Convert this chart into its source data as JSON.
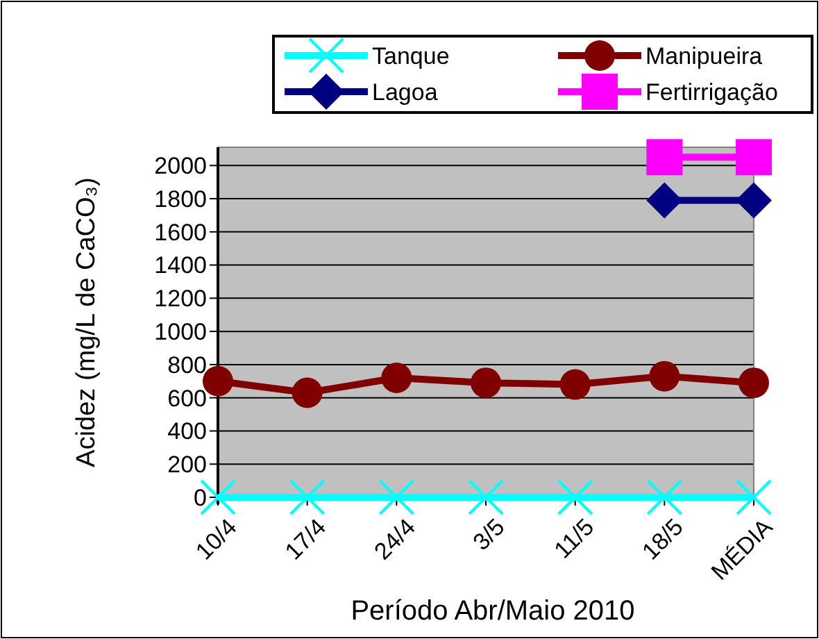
{
  "chart_data": {
    "type": "line",
    "xlabel": "Período Abr/Maio 2010",
    "ylabel": "Acidez (mg/L de CaCO₃)",
    "categories": [
      "10/4",
      "17/4",
      "24/4",
      "3/5",
      "11/5",
      "18/5",
      "MÉDIA"
    ],
    "series": [
      {
        "name": "Tanque",
        "color": "#00ffff",
        "marker": "cross",
        "values": [
          0,
          0,
          0,
          0,
          0,
          0,
          0
        ]
      },
      {
        "name": "Manipueira",
        "color": "#800000",
        "marker": "circle",
        "values": [
          700,
          630,
          720,
          690,
          680,
          730,
          690
        ]
      },
      {
        "name": "Lagoa",
        "color": "#000080",
        "marker": "diamond",
        "values": [
          null,
          null,
          null,
          null,
          null,
          1790,
          1790
        ]
      },
      {
        "name": "Fertirrigação",
        "color": "#ff00ff",
        "marker": "square",
        "values": [
          null,
          null,
          null,
          null,
          null,
          2050,
          2050
        ]
      }
    ],
    "ylim": [
      0,
      2110
    ],
    "yticks": [
      0,
      200,
      400,
      600,
      800,
      1000,
      1200,
      1400,
      1600,
      1800,
      2000
    ],
    "grid": "y",
    "legend": "top"
  }
}
